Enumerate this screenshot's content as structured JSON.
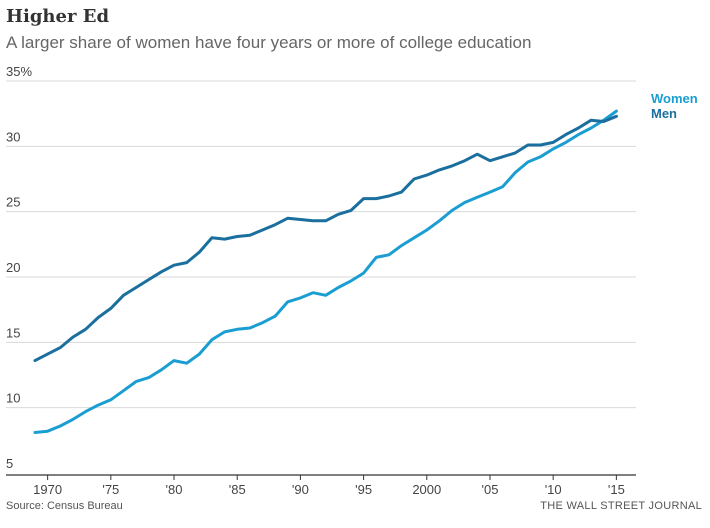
{
  "header": {
    "title": "Higher Ed",
    "subtitle": "A larger share of women have four years or more of college education"
  },
  "footer": {
    "source": "Source: Census Bureau",
    "credit": "THE WALL STREET JOURNAL"
  },
  "colors": {
    "women": "#1a9ed2",
    "men": "#1a6f9e",
    "grid": "#d9d9d9",
    "axis": "#333333"
  },
  "chart_data": {
    "type": "line",
    "title": "Higher Ed",
    "subtitle": "A larger share of women have four years or more of college education",
    "xlabel": "",
    "ylabel": "",
    "xlim": [
      1969,
      2016
    ],
    "ylim": [
      5,
      35
    ],
    "y_ticks": [
      5,
      10,
      15,
      20,
      25,
      30,
      35
    ],
    "y_tick_labels": [
      "5",
      "10",
      "15",
      "20",
      "25",
      "30",
      "35%"
    ],
    "x_ticks": [
      1970,
      1975,
      1980,
      1985,
      1990,
      1995,
      2000,
      2005,
      2010,
      2015
    ],
    "x_tick_labels": [
      "1970",
      "'75",
      "'80",
      "'85",
      "'90",
      "'95",
      "2000",
      "'05",
      "'10",
      "'15"
    ],
    "grid": true,
    "x": [
      1969,
      1970,
      1971,
      1972,
      1973,
      1974,
      1975,
      1976,
      1977,
      1978,
      1979,
      1980,
      1981,
      1982,
      1983,
      1984,
      1985,
      1986,
      1987,
      1988,
      1989,
      1990,
      1991,
      1992,
      1993,
      1994,
      1995,
      1996,
      1997,
      1998,
      1999,
      2000,
      2001,
      2002,
      2003,
      2004,
      2005,
      2006,
      2007,
      2008,
      2009,
      2010,
      2011,
      2012,
      2013,
      2014,
      2015
    ],
    "series": [
      {
        "name": "Women",
        "legend_label": "Women",
        "color": "#1a9ed2",
        "values": [
          8.1,
          8.2,
          8.6,
          9.1,
          9.7,
          10.2,
          10.6,
          11.3,
          12.0,
          12.3,
          12.9,
          13.6,
          13.4,
          14.1,
          15.2,
          15.8,
          16.0,
          16.1,
          16.5,
          17.0,
          18.1,
          18.4,
          18.8,
          18.6,
          19.2,
          19.7,
          20.3,
          21.5,
          21.7,
          22.4,
          23.0,
          23.6,
          24.3,
          25.1,
          25.7,
          26.1,
          26.5,
          26.9,
          28.0,
          28.8,
          29.2,
          29.8,
          30.3,
          30.9,
          31.4,
          32.0,
          32.7
        ]
      },
      {
        "name": "Men",
        "legend_label": "Men",
        "color": "#1a6f9e",
        "values": [
          13.6,
          14.1,
          14.6,
          15.4,
          16.0,
          16.9,
          17.6,
          18.6,
          19.2,
          19.8,
          20.4,
          20.9,
          21.1,
          21.9,
          23.0,
          22.9,
          23.1,
          23.2,
          23.6,
          24.0,
          24.5,
          24.4,
          24.3,
          24.3,
          24.8,
          25.1,
          26.0,
          26.0,
          26.2,
          26.5,
          27.5,
          27.8,
          28.2,
          28.5,
          28.9,
          29.4,
          28.9,
          29.2,
          29.5,
          30.1,
          30.1,
          30.3,
          30.9,
          31.4,
          32.0,
          31.9,
          32.3
        ]
      }
    ]
  }
}
